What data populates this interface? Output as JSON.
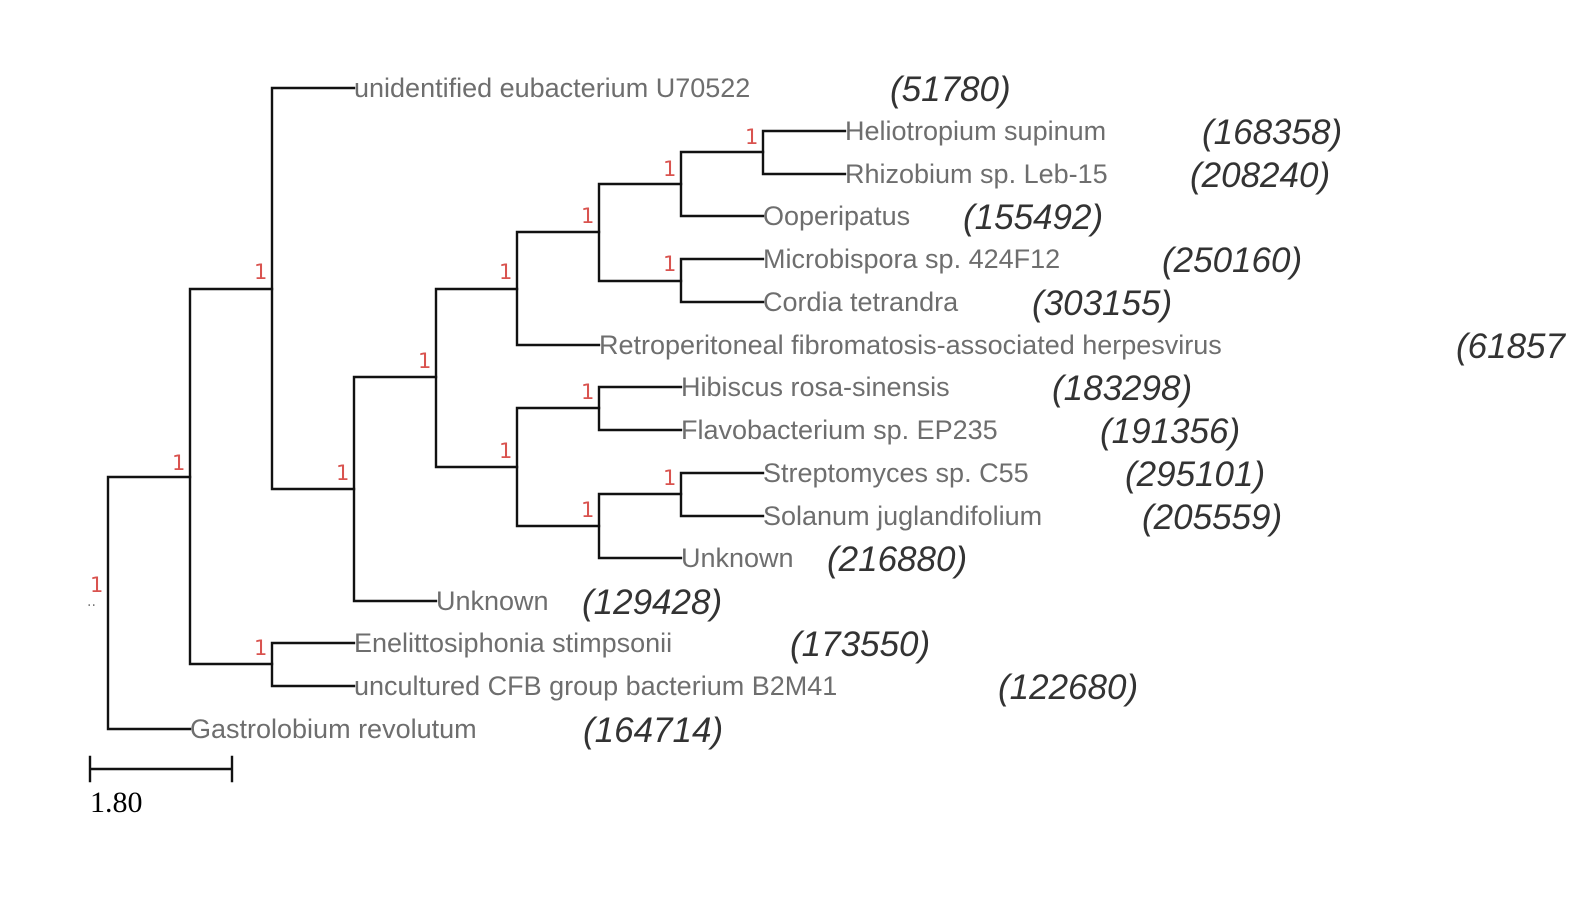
{
  "tree": {
    "root_support": "1",
    "root_marker": "..",
    "clades": [
      {
        "id": "n2",
        "support": "1"
      },
      {
        "id": "n3",
        "support": "1"
      },
      {
        "id": "n4",
        "support": "1"
      },
      {
        "id": "n5",
        "support": "1"
      },
      {
        "id": "n6",
        "support": "1"
      },
      {
        "id": "n7",
        "support": "1"
      },
      {
        "id": "n8",
        "support": "1"
      },
      {
        "id": "n9",
        "support": "1"
      },
      {
        "id": "n10",
        "support": "1"
      },
      {
        "id": "n11",
        "support": "1"
      },
      {
        "id": "n12",
        "support": "1"
      },
      {
        "id": "n13",
        "support": "1"
      },
      {
        "id": "n14",
        "support": "1"
      }
    ],
    "leaves": [
      {
        "label": "unidentified eubacterium U70522",
        "count": "(51780)"
      },
      {
        "label": "Heliotropium supinum",
        "count": "(168358)"
      },
      {
        "label": "Rhizobium sp. Leb-15",
        "count": "(208240)"
      },
      {
        "label": "Ooperipatus",
        "count": "(155492)"
      },
      {
        "label": "Microbispora sp. 424F12",
        "count": "(250160)"
      },
      {
        "label": "Cordia tetrandra",
        "count": "(303155)"
      },
      {
        "label": "Retroperitoneal fibromatosis-associated herpesvirus",
        "count": "(61857"
      },
      {
        "label": "Hibiscus rosa-sinensis",
        "count": "(183298)"
      },
      {
        "label": "Flavobacterium sp. EP235",
        "count": "(191356)"
      },
      {
        "label": "Streptomyces sp. C55",
        "count": "(295101)"
      },
      {
        "label": "Solanum juglandifolium",
        "count": "(205559)"
      },
      {
        "label": "Unknown",
        "count": "(216880)"
      },
      {
        "label": "Unknown",
        "count": "(129428)"
      },
      {
        "label": "Enelittosiphonia stimpsonii",
        "count": "(173550)"
      },
      {
        "label": "uncultured CFB group bacterium B2M41",
        "count": "(122680)"
      },
      {
        "label": "Gastrolobium revolutum",
        "count": "(164714)"
      }
    ]
  },
  "scale_bar": {
    "label": "1.80"
  }
}
